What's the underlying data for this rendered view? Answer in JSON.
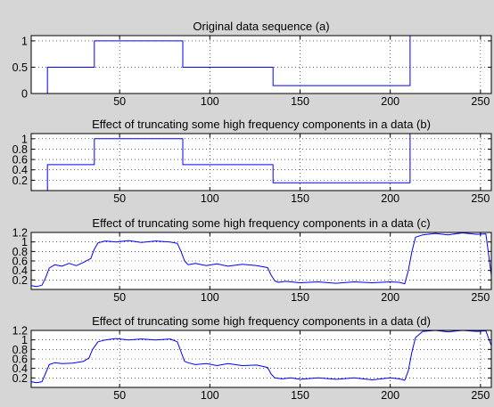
{
  "chart_data": [
    {
      "type": "line",
      "title": "Original data sequence (a)",
      "xlim": [
        1,
        256
      ],
      "ylim": [
        0,
        1.1
      ],
      "xticks": [
        50,
        100,
        150,
        200,
        250
      ],
      "xtick_labels": [
        "50",
        "100",
        "150",
        "200",
        "250"
      ],
      "yticks": [
        0,
        0.5,
        1
      ],
      "ytick_labels": [
        "0",
        "0.5",
        "1"
      ],
      "grid": true,
      "line_color": "#0000ff",
      "series": [
        {
          "x": [
            1,
            10,
            10,
            36,
            36,
            85,
            85,
            135,
            135,
            211,
            211,
            256
          ],
          "y": [
            0,
            0,
            0.5,
            0.5,
            1,
            1,
            0.5,
            0.5,
            0.15,
            0.15,
            1.15,
            1.15
          ]
        }
      ]
    },
    {
      "type": "line",
      "title": "Effect of truncating some high frequency components in a data (b)",
      "xlim": [
        1,
        256
      ],
      "ylim": [
        0,
        1.1
      ],
      "xticks": [
        50,
        100,
        150,
        200,
        250
      ],
      "xtick_labels": [
        "50",
        "100",
        "150",
        "200",
        "250"
      ],
      "yticks": [
        0.2,
        0.4,
        0.6,
        0.8,
        1
      ],
      "ytick_labels": [
        "0.2",
        "0.4",
        "0.6",
        "0.8",
        "1"
      ],
      "grid": true,
      "line_color": "#0000ff",
      "series": [
        {
          "x": [
            1,
            10,
            10,
            36,
            36,
            85,
            85,
            135,
            135,
            211,
            211,
            256
          ],
          "y": [
            0,
            0,
            0.5,
            0.5,
            1,
            1,
            0.5,
            0.5,
            0.15,
            0.15,
            1.15,
            1.15
          ]
        }
      ]
    },
    {
      "type": "line",
      "title": "Effect of truncating some high frequency components in a data (c)",
      "xlim": [
        1,
        256
      ],
      "ylim": [
        0,
        1.2
      ],
      "xticks": [
        50,
        100,
        150,
        200,
        250
      ],
      "xtick_labels": [
        "50",
        "100",
        "150",
        "200",
        "250"
      ],
      "yticks": [
        0.2,
        0.4,
        0.6,
        0.8,
        1,
        1.2
      ],
      "ytick_labels": [
        "0.2",
        "0.4",
        "0.6",
        "0.8",
        "1",
        "1.2"
      ],
      "grid": true,
      "line_color": "#0000ff",
      "series": [
        {
          "x": [
            1,
            4,
            7,
            9,
            11,
            14,
            18,
            22,
            26,
            30,
            34,
            36,
            38,
            42,
            48,
            55,
            62,
            70,
            78,
            82,
            84,
            86,
            88,
            92,
            98,
            104,
            110,
            118,
            126,
            132,
            134,
            136,
            138,
            142,
            150,
            160,
            170,
            180,
            190,
            200,
            205,
            208,
            210,
            212,
            214,
            218,
            225,
            232,
            240,
            248,
            253,
            256
          ],
          "y": [
            0.08,
            0.06,
            0.09,
            0.25,
            0.45,
            0.52,
            0.49,
            0.55,
            0.5,
            0.57,
            0.65,
            0.85,
            0.98,
            1.02,
            1.0,
            1.03,
            0.99,
            1.02,
            1.0,
            0.97,
            0.8,
            0.6,
            0.52,
            0.55,
            0.5,
            0.54,
            0.49,
            0.53,
            0.5,
            0.46,
            0.3,
            0.18,
            0.15,
            0.17,
            0.14,
            0.16,
            0.13,
            0.16,
            0.14,
            0.16,
            0.15,
            0.12,
            0.4,
            0.8,
            1.1,
            1.15,
            1.18,
            1.15,
            1.19,
            1.16,
            1.17,
            0.3
          ]
        }
      ]
    },
    {
      "type": "line",
      "title": "Effect of truncating some high frequency components in a data (d)",
      "xlim": [
        1,
        256
      ],
      "ylim": [
        0,
        1.2
      ],
      "xticks": [
        50,
        100,
        150,
        200,
        250
      ],
      "xtick_labels": [
        "50",
        "100",
        "150",
        "200",
        "250"
      ],
      "yticks": [
        0.2,
        0.4,
        0.6,
        0.8,
        1,
        1.2
      ],
      "ytick_labels": [
        "0.2",
        "0.4",
        "0.6",
        "0.8",
        "1",
        "1.2"
      ],
      "grid": true,
      "line_color": "#0000ff",
      "series": [
        {
          "x": [
            1,
            4,
            7,
            9,
            11,
            14,
            18,
            24,
            30,
            33,
            35,
            38,
            42,
            48,
            55,
            62,
            70,
            78,
            82,
            84,
            86,
            88,
            92,
            98,
            104,
            110,
            118,
            126,
            132,
            134,
            136,
            140,
            145,
            150,
            160,
            170,
            180,
            190,
            200,
            205,
            208,
            210,
            212,
            214,
            218,
            225,
            232,
            240,
            248,
            253,
            256
          ],
          "y": [
            0.12,
            0.1,
            0.12,
            0.3,
            0.48,
            0.52,
            0.5,
            0.51,
            0.55,
            0.62,
            0.8,
            0.96,
            1.0,
            1.03,
            1.0,
            1.02,
            1.0,
            1.02,
            0.96,
            0.75,
            0.55,
            0.52,
            0.48,
            0.5,
            0.46,
            0.5,
            0.46,
            0.47,
            0.42,
            0.28,
            0.2,
            0.18,
            0.2,
            0.17,
            0.2,
            0.17,
            0.2,
            0.16,
            0.2,
            0.18,
            0.15,
            0.35,
            0.75,
            1.05,
            1.18,
            1.2,
            1.17,
            1.21,
            1.18,
            1.19,
            0.88
          ]
        }
      ]
    }
  ]
}
